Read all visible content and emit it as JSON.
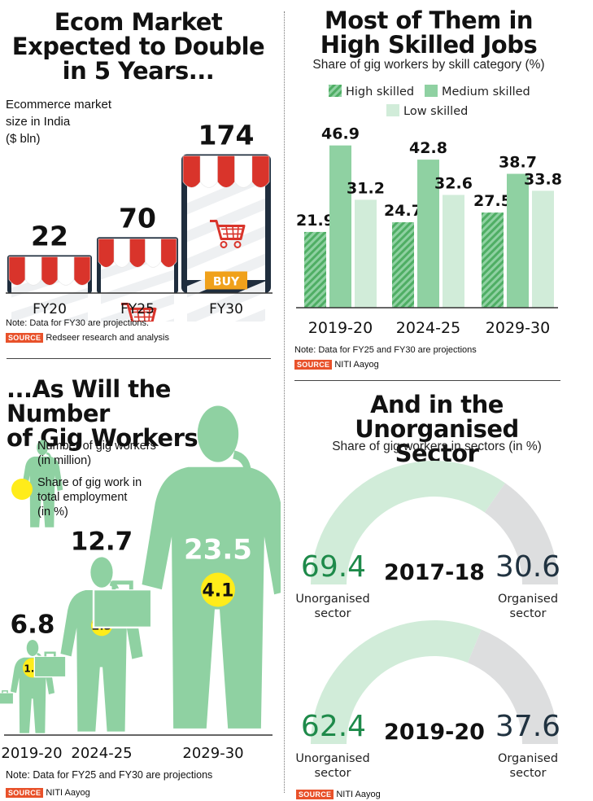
{
  "ecom": {
    "title_lines": [
      "Ecom Market",
      "Expected to Double",
      "in 5 Years..."
    ],
    "subtitle_lines": [
      "Ecommerce market",
      "size in India",
      "($ bln)"
    ],
    "note": "Note: Data for FY30 are projections.",
    "source_label": "SOURCE",
    "source_text": "Redseer research and analysis",
    "buy_label": "BUY",
    "chart_data": {
      "type": "bar",
      "categories": [
        "FY20",
        "FY25",
        "FY30"
      ],
      "values": [
        22,
        70,
        174
      ],
      "title": "Ecom Market Expected to Double in 5 Years...",
      "ylabel": "Ecommerce market size in India ($ bln)"
    },
    "colors": {
      "awning_red": "#d9342b",
      "frame": "#1f2d3d",
      "buy": "#f0a11b"
    }
  },
  "skills": {
    "title_lines": [
      "Most of Them in",
      "High Skilled Jobs"
    ],
    "subtitle": "Share of gig workers by skill category (%)",
    "note": "Note: Data for FY25 and FY30 are projections",
    "source_label": "SOURCE",
    "source_text": "NITI Aayog",
    "chart_data": {
      "type": "bar",
      "categories": [
        "2019-20",
        "2024-25",
        "2029-30"
      ],
      "series": [
        {
          "name": "High skilled",
          "values": [
            21.9,
            24.7,
            27.5
          ]
        },
        {
          "name": "Medium skilled",
          "values": [
            46.9,
            42.8,
            38.7
          ]
        },
        {
          "name": "Low skilled",
          "values": [
            31.2,
            32.6,
            33.8
          ]
        }
      ],
      "title": "Most of Them in High Skilled Jobs",
      "legend": "top"
    },
    "colors": {
      "high": "#67c07c",
      "medium": "#8fd1a2",
      "low": "#d1ecd9"
    }
  },
  "gig": {
    "title_lines": [
      "...As Will the Number",
      "of Gig Workers"
    ],
    "legend_workers_lines": [
      "Number of gig workers",
      "(in million)"
    ],
    "legend_share_lines": [
      "Share of gig work in",
      "total employment",
      "(in %)"
    ],
    "note": "Note: Data for FY25 and FY30 are projections",
    "source_label": "SOURCE",
    "source_text": "NITI Aayog",
    "chart_data": {
      "type": "bar",
      "categories": [
        "2019-20",
        "2024-25",
        "2029-30"
      ],
      "series": [
        {
          "name": "Number of gig workers (in million)",
          "values": [
            6.8,
            12.7,
            23.5
          ]
        },
        {
          "name": "Share of gig work in total employment (in %)",
          "values": [
            1.3,
            2.3,
            4.1
          ]
        }
      ],
      "title": "...As Will the Number of Gig Workers"
    },
    "colors": {
      "figure": "#8fd1a2",
      "bubble": "#ffec1a"
    }
  },
  "sector": {
    "title_lines": [
      "And in the Unorganised",
      "Sector"
    ],
    "subtitle": "Share of gig workers in sectors (in %)",
    "source_label": "SOURCE",
    "source_text": "NITI Aayog",
    "unorg_label_lines": [
      "Unorganised",
      "sector"
    ],
    "org_label_lines": [
      "Organised",
      "sector"
    ],
    "chart_data": {
      "type": "pie",
      "categories": [
        "Unorganised sector",
        "Organised sector"
      ],
      "series": [
        {
          "name": "2017-18",
          "values": [
            69.4,
            30.6
          ]
        },
        {
          "name": "2019-20",
          "values": [
            62.4,
            37.6
          ]
        }
      ],
      "title": "And in the Unorganised Sector"
    },
    "colors": {
      "unorg": "#d1ecd9",
      "org": "#dddedf",
      "unorg_text": "#1e8a4a",
      "org_text": "#203240"
    }
  }
}
